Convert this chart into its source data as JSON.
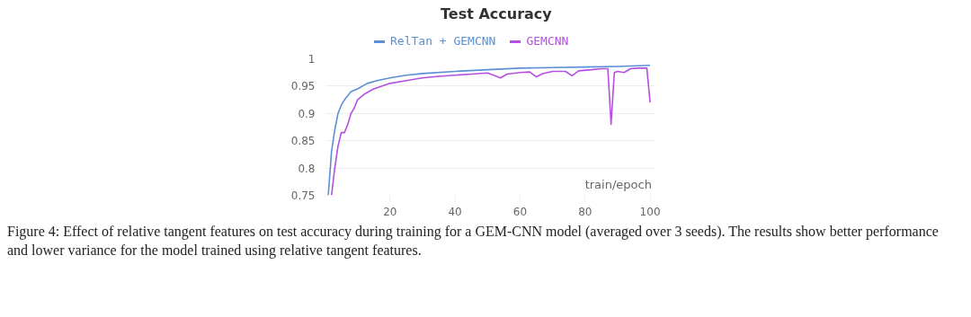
{
  "chart_data": {
    "type": "line",
    "title": "Test Accuracy",
    "xlabel": "train/epoch",
    "xlim": [
      0,
      101.5
    ],
    "ylim": [
      0.75,
      1
    ],
    "xticks": [
      20,
      40,
      60,
      80,
      100
    ],
    "yticks": [
      0.75,
      0.8,
      0.85,
      0.9,
      0.95,
      1
    ],
    "grid": "y",
    "legend": "top",
    "series": [
      {
        "name": "RelTan + GEMCNN",
        "color": "#5b8fd6",
        "x": [
          1,
          2,
          3,
          4,
          5,
          6,
          8,
          10,
          13,
          16,
          20,
          25,
          30,
          40,
          50,
          60,
          70,
          80,
          90,
          100
        ],
        "values": [
          0.75,
          0.83,
          0.87,
          0.9,
          0.915,
          0.925,
          0.94,
          0.945,
          0.955,
          0.96,
          0.965,
          0.97,
          0.973,
          0.977,
          0.98,
          0.983,
          0.984,
          0.985,
          0.986,
          0.988
        ]
      },
      {
        "name": "GEMCNN",
        "color": "#b44fe0",
        "x": [
          2,
          3,
          4,
          5,
          6,
          7,
          8,
          9,
          10,
          12,
          15,
          20,
          25,
          30,
          35,
          40,
          45,
          50,
          54,
          56,
          60,
          63,
          65,
          67,
          70,
          74,
          76,
          78,
          82,
          85,
          87,
          88,
          89,
          90,
          92,
          94,
          96,
          99,
          100
        ],
        "values": [
          0.75,
          0.8,
          0.84,
          0.865,
          0.865,
          0.88,
          0.9,
          0.91,
          0.925,
          0.935,
          0.945,
          0.955,
          0.96,
          0.965,
          0.968,
          0.97,
          0.972,
          0.974,
          0.965,
          0.972,
          0.975,
          0.976,
          0.967,
          0.973,
          0.977,
          0.977,
          0.969,
          0.978,
          0.98,
          0.982,
          0.982,
          0.88,
          0.975,
          0.977,
          0.975,
          0.982,
          0.983,
          0.983,
          0.92
        ]
      }
    ],
    "annotations": [
      "Figure 4: Effect of relative tangent features on test accuracy during training for a GEM-CNN model (averaged over 3 seeds). The results show better performance and lower variance for the model trained using relative tangent features."
    ]
  }
}
